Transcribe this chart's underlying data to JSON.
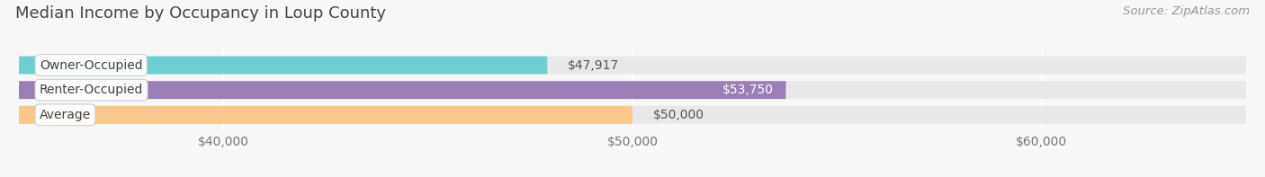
{
  "title": "Median Income by Occupancy in Loup County",
  "source": "Source: ZipAtlas.com",
  "categories": [
    "Owner-Occupied",
    "Renter-Occupied",
    "Average"
  ],
  "values": [
    47917,
    53750,
    50000
  ],
  "bar_colors": [
    "#6ecfd1",
    "#9b7eb8",
    "#f8c98a"
  ],
  "bar_bg_color": "#e8e8e8",
  "value_labels": [
    "$47,917",
    "$53,750",
    "$50,000"
  ],
  "value_label_white": [
    false,
    true,
    false
  ],
  "xlim_min": 35000,
  "xlim_max": 65000,
  "xticks": [
    40000,
    50000,
    60000
  ],
  "xtick_labels": [
    "$40,000",
    "$50,000",
    "$60,000"
  ],
  "title_fontsize": 13,
  "source_fontsize": 9.5,
  "label_fontsize": 10,
  "tick_fontsize": 10,
  "background_color": "#f7f7f7"
}
